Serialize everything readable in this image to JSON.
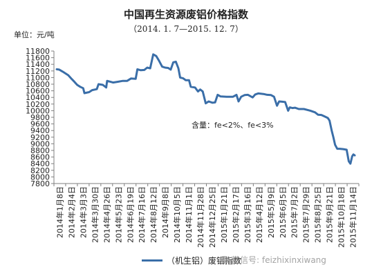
{
  "header": {
    "title": "中国再生资源废铝价格指数",
    "subtitle": "（2014. 1. 7—2015. 12. 7）",
    "unit": "单位：元/吨"
  },
  "annotation": "含量：fe<2%、fe<3%",
  "legend": {
    "label": "（机生铝）废铝指数"
  },
  "watermark": {
    "text": "微信号: feizhixinxiwang",
    "icon": "wechat-icon"
  },
  "chart_data": {
    "type": "line",
    "title": "中国再生资源废铝价格指数",
    "subtitle": "（2014. 1. 7—2015. 12. 7）",
    "ylabel": "单位：元/吨",
    "ylim": [
      7800,
      11800
    ],
    "ystep": 200,
    "grid": false,
    "legend_position": "bottom",
    "line_color": "#3a6ea8",
    "x_ticks": [
      "2014年1月8日",
      "2014年2月4日",
      "2014年3月3日",
      "2014年3月30日",
      "2014年4月26日",
      "2014年5月23日",
      "2014年6月19日",
      "2014年7月16日",
      "2014年8月12日",
      "2014年9月8日",
      "2014年10月5日",
      "2014年11月1日",
      "2014年11月28日",
      "2014年12月25日",
      "2015年1月21日",
      "2015年2月17日",
      "2015年3月16日",
      "2015年4月12日",
      "2015年5月9日",
      "2015年6月5日",
      "2015年7月2日",
      "2015年7月29日",
      "2015年8月25日",
      "2015年9月21日",
      "2015年10月18日",
      "2015年11月14日"
    ],
    "series": [
      {
        "name": "（机生铝）废铝指数",
        "points": [
          [
            "2014-01-08",
            11250
          ],
          [
            "2014-01-14",
            11240
          ],
          [
            "2014-01-22",
            11180
          ],
          [
            "2014-02-04",
            11070
          ],
          [
            "2014-02-11",
            10970
          ],
          [
            "2014-02-18",
            10880
          ],
          [
            "2014-02-25",
            10780
          ],
          [
            "2014-03-04",
            10720
          ],
          [
            "2014-03-11",
            10680
          ],
          [
            "2014-03-14",
            10530
          ],
          [
            "2014-03-25",
            10560
          ],
          [
            "2014-04-01",
            10620
          ],
          [
            "2014-04-12",
            10650
          ],
          [
            "2014-04-16",
            10800
          ],
          [
            "2014-04-26",
            10780
          ],
          [
            "2014-05-04",
            10700
          ],
          [
            "2014-05-06",
            10900
          ],
          [
            "2014-05-12",
            10880
          ],
          [
            "2014-05-20",
            10850
          ],
          [
            "2014-05-30",
            10870
          ],
          [
            "2014-06-12",
            10900
          ],
          [
            "2014-06-22",
            10900
          ],
          [
            "2014-07-01",
            10970
          ],
          [
            "2014-07-12",
            10960
          ],
          [
            "2014-07-16",
            11250
          ],
          [
            "2014-07-24",
            11220
          ],
          [
            "2014-08-01",
            11230
          ],
          [
            "2014-08-08",
            11300
          ],
          [
            "2014-08-15",
            11280
          ],
          [
            "2014-08-22",
            11700
          ],
          [
            "2014-08-29",
            11650
          ],
          [
            "2014-09-05",
            11500
          ],
          [
            "2014-09-12",
            11330
          ],
          [
            "2014-09-19",
            11300
          ],
          [
            "2014-09-26",
            11290
          ],
          [
            "2014-10-02",
            11240
          ],
          [
            "2014-10-08",
            11460
          ],
          [
            "2014-10-14",
            11480
          ],
          [
            "2014-10-20",
            11280
          ],
          [
            "2014-10-24",
            11000
          ],
          [
            "2014-10-31",
            10980
          ],
          [
            "2014-11-06",
            10920
          ],
          [
            "2014-11-14",
            10920
          ],
          [
            "2014-11-18",
            10720
          ],
          [
            "2014-11-28",
            10700
          ],
          [
            "2014-12-05",
            10580
          ],
          [
            "2014-12-10",
            10640
          ],
          [
            "2014-12-16",
            10580
          ],
          [
            "2014-12-23",
            10220
          ],
          [
            "2014-12-30",
            10280
          ],
          [
            "2015-01-08",
            10240
          ],
          [
            "2015-01-14",
            10250
          ],
          [
            "2015-01-20",
            10480
          ],
          [
            "2015-01-27",
            10430
          ],
          [
            "2015-02-10",
            10420
          ],
          [
            "2015-02-25",
            10420
          ],
          [
            "2015-03-05",
            10480
          ],
          [
            "2015-03-10",
            10280
          ],
          [
            "2015-03-16",
            10420
          ],
          [
            "2015-03-24",
            10470
          ],
          [
            "2015-04-01",
            10480
          ],
          [
            "2015-04-12",
            10400
          ],
          [
            "2015-04-18",
            10490
          ],
          [
            "2015-04-25",
            10520
          ],
          [
            "2015-05-02",
            10510
          ],
          [
            "2015-05-09",
            10500
          ],
          [
            "2015-05-16",
            10480
          ],
          [
            "2015-05-25",
            10470
          ],
          [
            "2015-06-01",
            10420
          ],
          [
            "2015-06-08",
            10150
          ],
          [
            "2015-06-13",
            10280
          ],
          [
            "2015-06-20",
            10270
          ],
          [
            "2015-06-27",
            10260
          ],
          [
            "2015-07-04",
            10000
          ],
          [
            "2015-07-08",
            10100
          ],
          [
            "2015-07-14",
            10080
          ],
          [
            "2015-07-20",
            10090
          ],
          [
            "2015-07-29",
            10050
          ],
          [
            "2015-08-10",
            10050
          ],
          [
            "2015-08-25",
            10000
          ],
          [
            "2015-09-05",
            9950
          ],
          [
            "2015-09-12",
            9880
          ],
          [
            "2015-09-20",
            9870
          ],
          [
            "2015-09-27",
            9830
          ],
          [
            "2015-10-05",
            9780
          ],
          [
            "2015-10-09",
            9700
          ],
          [
            "2015-10-14",
            9400
          ],
          [
            "2015-10-18",
            9200
          ],
          [
            "2015-10-22",
            8970
          ],
          [
            "2015-10-27",
            8850
          ],
          [
            "2015-11-02",
            8850
          ],
          [
            "2015-11-10",
            8840
          ],
          [
            "2015-11-18",
            8820
          ],
          [
            "2015-11-23",
            8470
          ],
          [
            "2015-11-27",
            8400
          ],
          [
            "2015-12-01",
            8620
          ],
          [
            "2015-12-04",
            8680
          ],
          [
            "2015-12-07",
            8650
          ]
        ]
      }
    ]
  }
}
